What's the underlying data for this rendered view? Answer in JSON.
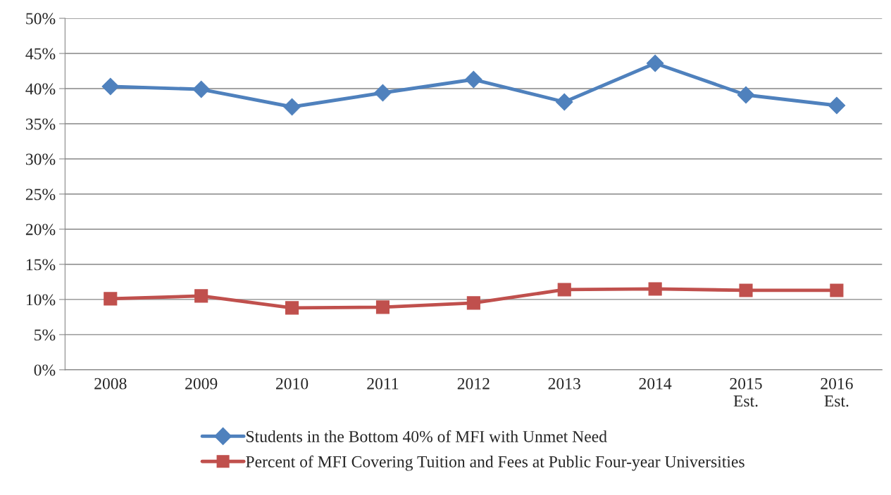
{
  "chart_data": {
    "type": "line",
    "categories": [
      "2008",
      "2009",
      "2010",
      "2011",
      "2012",
      "2013",
      "2014",
      "2015\nEst.",
      "2016\nEst."
    ],
    "series": [
      {
        "name": "Students in the Bottom 40% of MFI with Unmet Need",
        "color": "#4f81bd",
        "marker": "diamond",
        "values": [
          40.3,
          39.9,
          37.4,
          39.4,
          41.3,
          38.1,
          43.6,
          39.1,
          37.6
        ]
      },
      {
        "name": "Percent of MFI Covering Tuition and Fees at Public Four-year Universities",
        "color": "#c0504d",
        "marker": "square",
        "values": [
          10.1,
          10.5,
          8.8,
          8.9,
          9.5,
          11.4,
          11.5,
          11.3,
          11.3
        ]
      }
    ],
    "ylim": [
      0,
      50
    ],
    "yticks": [
      {
        "value": 0,
        "label": "0%"
      },
      {
        "value": 5,
        "label": "5%"
      },
      {
        "value": 10,
        "label": "10%"
      },
      {
        "value": 15,
        "label": "15%"
      },
      {
        "value": 20,
        "label": "20%"
      },
      {
        "value": 25,
        "label": "25%"
      },
      {
        "value": 30,
        "label": "30%"
      },
      {
        "value": 35,
        "label": "35%"
      },
      {
        "value": 40,
        "label": "40%"
      },
      {
        "value": 45,
        "label": "45%"
      },
      {
        "value": 50,
        "label": "50%"
      }
    ],
    "grid": "y",
    "legend": "bottom",
    "line_style": "solid"
  }
}
